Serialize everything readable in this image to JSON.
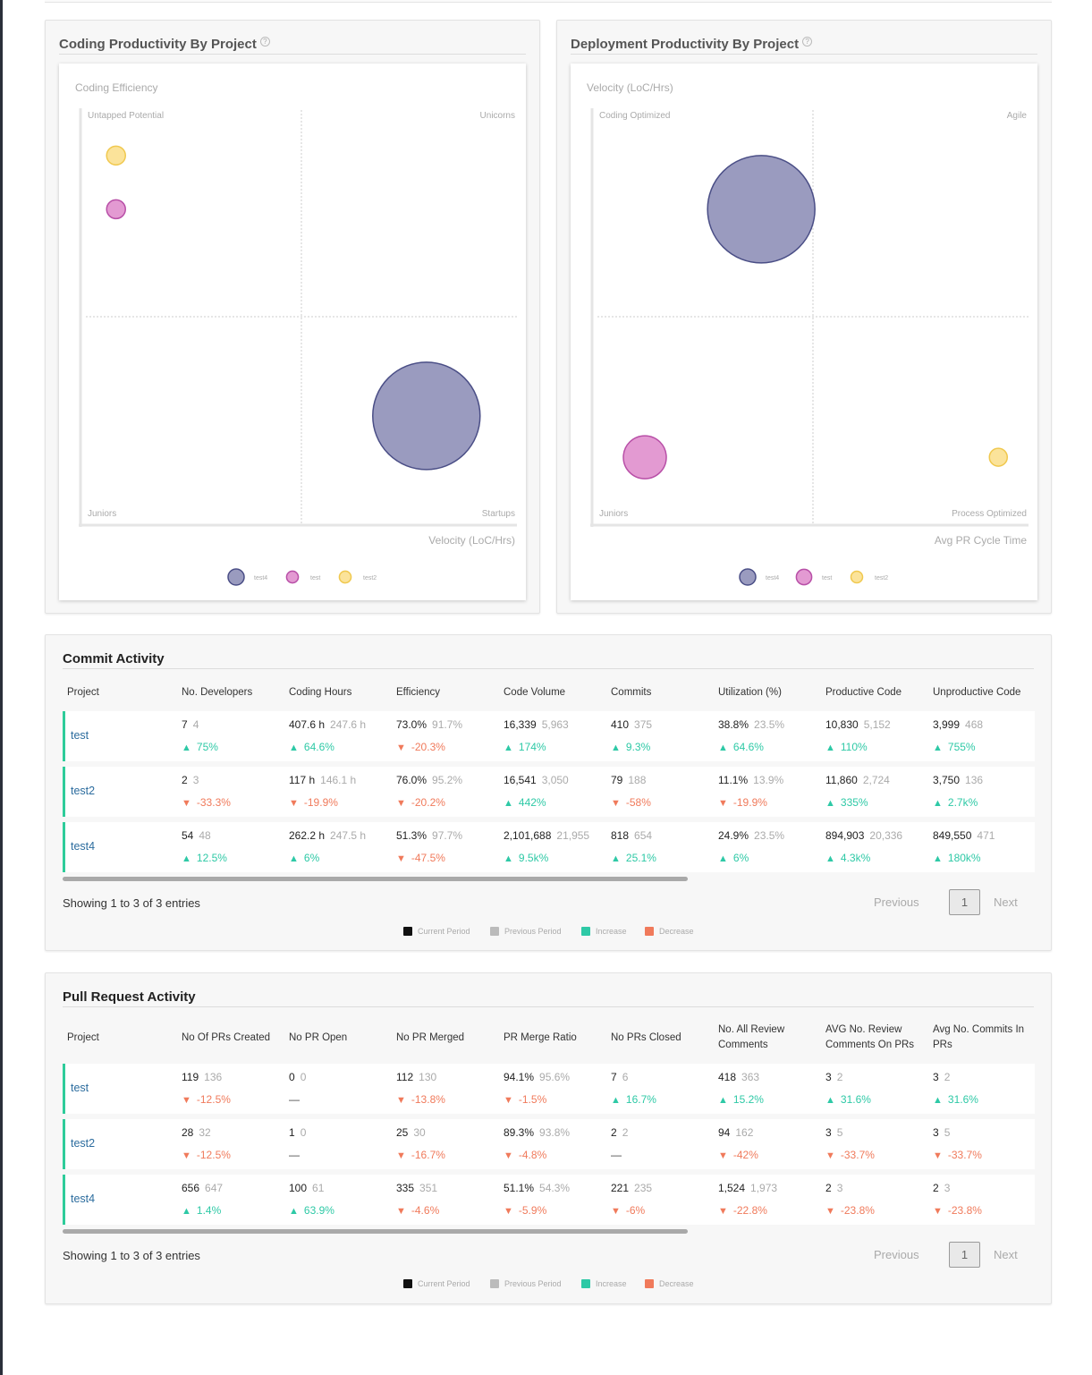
{
  "colors": {
    "test4": "#9a9bbf",
    "test4_stroke": "#4a4e86",
    "test": "#e39ad2",
    "test_stroke": "#b84fa7",
    "test2": "#fbe39a",
    "test2_stroke": "#f0c84e",
    "increase": "#2ec9a6",
    "decrease": "#f07a5b",
    "current": "#111111",
    "previous": "#bbbbbb"
  },
  "coding_panel": {
    "title": "Coding Productivity By Project",
    "help_icon": "question-circle-icon",
    "chart_data": {
      "type": "scatter",
      "ylabel": "Coding Efficiency",
      "xlabel": "Velocity (LoC/Hrs)",
      "quadrants": {
        "top_left": "Untapped Potential",
        "top_right": "Unicorns",
        "bottom_left": "Juniors",
        "bottom_right": "Startups"
      },
      "legend": [
        "test4",
        "test",
        "test2"
      ],
      "legend_placement": "bottom-center",
      "points": [
        {
          "name": "test4",
          "x": 0.79,
          "y": 0.26,
          "r": 1.0
        },
        {
          "name": "test",
          "x": 0.07,
          "y": 0.76,
          "r": 0.1
        },
        {
          "name": "test2",
          "x": 0.07,
          "y": 0.89,
          "r": 0.1
        }
      ]
    }
  },
  "deployment_panel": {
    "title": "Deployment Productivity By Project",
    "help_icon": "question-circle-icon",
    "chart_data": {
      "type": "scatter",
      "ylabel": "Velocity (LoC/Hrs)",
      "xlabel": "Avg PR Cycle Time",
      "quadrants": {
        "top_left": "Coding Optimized",
        "top_right": "Agile",
        "bottom_left": "Juniors",
        "bottom_right": "Process Optimized"
      },
      "legend": [
        "test4",
        "test",
        "test2"
      ],
      "legend_placement": "bottom-center",
      "points": [
        {
          "name": "test4",
          "x": 0.38,
          "y": 0.76,
          "r": 1.0
        },
        {
          "name": "test",
          "x": 0.11,
          "y": 0.16,
          "r": 0.4
        },
        {
          "name": "test2",
          "x": 0.93,
          "y": 0.16,
          "r": 0.15
        }
      ]
    }
  },
  "commit_activity": {
    "title": "Commit Activity",
    "headers": [
      "Project",
      "No. Developers",
      "Coding Hours",
      "Efficiency",
      "Code Volume",
      "Commits",
      "Utilization (%)",
      "Productive Code",
      "Unproductive Code"
    ],
    "rows": [
      {
        "project": "test",
        "cells": [
          {
            "cur": "7",
            "prev": "4",
            "chg": "75%",
            "dir": "up"
          },
          {
            "cur": "407.6 h",
            "prev": "247.6 h",
            "chg": "64.6%",
            "dir": "up"
          },
          {
            "cur": "73.0%",
            "prev": "91.7%",
            "chg": "-20.3%",
            "dir": "down"
          },
          {
            "cur": "16,339",
            "prev": "5,963",
            "chg": "174%",
            "dir": "up"
          },
          {
            "cur": "410",
            "prev": "375",
            "chg": "9.3%",
            "dir": "up"
          },
          {
            "cur": "38.8%",
            "prev": "23.5%",
            "chg": "64.6%",
            "dir": "up"
          },
          {
            "cur": "10,830",
            "prev": "5,152",
            "chg": "110%",
            "dir": "up"
          },
          {
            "cur": "3,999",
            "prev": "468",
            "chg": "755%",
            "dir": "up"
          }
        ]
      },
      {
        "project": "test2",
        "cells": [
          {
            "cur": "2",
            "prev": "3",
            "chg": "-33.3%",
            "dir": "down"
          },
          {
            "cur": "117 h",
            "prev": "146.1 h",
            "chg": "-19.9%",
            "dir": "down"
          },
          {
            "cur": "76.0%",
            "prev": "95.2%",
            "chg": "-20.2%",
            "dir": "down"
          },
          {
            "cur": "16,541",
            "prev": "3,050",
            "chg": "442%",
            "dir": "up"
          },
          {
            "cur": "79",
            "prev": "188",
            "chg": "-58%",
            "dir": "down"
          },
          {
            "cur": "11.1%",
            "prev": "13.9%",
            "chg": "-19.9%",
            "dir": "down"
          },
          {
            "cur": "11,860",
            "prev": "2,724",
            "chg": "335%",
            "dir": "up"
          },
          {
            "cur": "3,750",
            "prev": "136",
            "chg": "2.7k%",
            "dir": "up"
          }
        ]
      },
      {
        "project": "test4",
        "cells": [
          {
            "cur": "54",
            "prev": "48",
            "chg": "12.5%",
            "dir": "up"
          },
          {
            "cur": "262.2 h",
            "prev": "247.5 h",
            "chg": "6%",
            "dir": "up"
          },
          {
            "cur": "51.3%",
            "prev": "97.7%",
            "chg": "-47.5%",
            "dir": "down"
          },
          {
            "cur": "2,101,688",
            "prev": "21,955",
            "chg": "9.5k%",
            "dir": "up"
          },
          {
            "cur": "818",
            "prev": "654",
            "chg": "25.1%",
            "dir": "up"
          },
          {
            "cur": "24.9%",
            "prev": "23.5%",
            "chg": "6%",
            "dir": "up"
          },
          {
            "cur": "894,903",
            "prev": "20,336",
            "chg": "4.3k%",
            "dir": "up"
          },
          {
            "cur": "849,550",
            "prev": "471",
            "chg": "180k%",
            "dir": "up"
          }
        ]
      }
    ],
    "showing": "Showing 1 to 3 of 3 entries",
    "pager": {
      "previous": "Previous",
      "page": "1",
      "next": "Next"
    }
  },
  "pr_activity": {
    "title": "Pull Request Activity",
    "headers": [
      "Project",
      "No Of PRs Created",
      "No PR Open",
      "No PR Merged",
      "PR Merge Ratio",
      "No PRs Closed",
      "No. All Review Comments",
      "AVG No. Review Comments On PRs",
      "Avg No. Commits In PRs"
    ],
    "rows": [
      {
        "project": "test",
        "cells": [
          {
            "cur": "119",
            "prev": "136",
            "chg": "-12.5%",
            "dir": "down"
          },
          {
            "cur": "0",
            "prev": "0",
            "chg": "—",
            "dir": "flat"
          },
          {
            "cur": "112",
            "prev": "130",
            "chg": "-13.8%",
            "dir": "down"
          },
          {
            "cur": "94.1%",
            "prev": "95.6%",
            "chg": "-1.5%",
            "dir": "down"
          },
          {
            "cur": "7",
            "prev": "6",
            "chg": "16.7%",
            "dir": "up"
          },
          {
            "cur": "418",
            "prev": "363",
            "chg": "15.2%",
            "dir": "up"
          },
          {
            "cur": "3",
            "prev": "2",
            "chg": "31.6%",
            "dir": "up"
          },
          {
            "cur": "3",
            "prev": "2",
            "chg": "31.6%",
            "dir": "up"
          }
        ]
      },
      {
        "project": "test2",
        "cells": [
          {
            "cur": "28",
            "prev": "32",
            "chg": "-12.5%",
            "dir": "down"
          },
          {
            "cur": "1",
            "prev": "0",
            "chg": "—",
            "dir": "flat"
          },
          {
            "cur": "25",
            "prev": "30",
            "chg": "-16.7%",
            "dir": "down"
          },
          {
            "cur": "89.3%",
            "prev": "93.8%",
            "chg": "-4.8%",
            "dir": "down"
          },
          {
            "cur": "2",
            "prev": "2",
            "chg": "—",
            "dir": "flat"
          },
          {
            "cur": "94",
            "prev": "162",
            "chg": "-42%",
            "dir": "down"
          },
          {
            "cur": "3",
            "prev": "5",
            "chg": "-33.7%",
            "dir": "down"
          },
          {
            "cur": "3",
            "prev": "5",
            "chg": "-33.7%",
            "dir": "down"
          }
        ]
      },
      {
        "project": "test4",
        "cells": [
          {
            "cur": "656",
            "prev": "647",
            "chg": "1.4%",
            "dir": "up"
          },
          {
            "cur": "100",
            "prev": "61",
            "chg": "63.9%",
            "dir": "up"
          },
          {
            "cur": "335",
            "prev": "351",
            "chg": "-4.6%",
            "dir": "down"
          },
          {
            "cur": "51.1%",
            "prev": "54.3%",
            "chg": "-5.9%",
            "dir": "down"
          },
          {
            "cur": "221",
            "prev": "235",
            "chg": "-6%",
            "dir": "down"
          },
          {
            "cur": "1,524",
            "prev": "1,973",
            "chg": "-22.8%",
            "dir": "down"
          },
          {
            "cur": "2",
            "prev": "3",
            "chg": "-23.8%",
            "dir": "down"
          },
          {
            "cur": "2",
            "prev": "3",
            "chg": "-23.8%",
            "dir": "down"
          }
        ]
      }
    ],
    "showing": "Showing 1 to 3 of 3 entries",
    "pager": {
      "previous": "Previous",
      "page": "1",
      "next": "Next"
    }
  },
  "legend": [
    {
      "label": "Current Period",
      "color_key": "current"
    },
    {
      "label": "Previous Period",
      "color_key": "previous"
    },
    {
      "label": "Increase",
      "color_key": "increase"
    },
    {
      "label": "Decrease",
      "color_key": "decrease"
    }
  ]
}
